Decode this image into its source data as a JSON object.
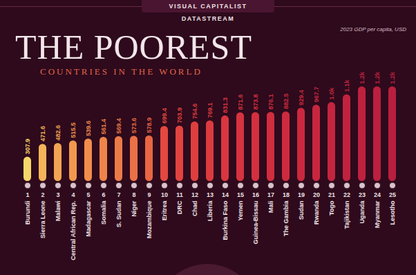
{
  "chart_data": {
    "type": "bar",
    "header": "VISUAL CAPITALIST DATASTREAM",
    "title": "THE POOREST",
    "subtitle": "COUNTRIES IN THE WORLD",
    "ylabel": "2023 GDP per capita, USD",
    "categories": [
      "Burundi",
      "Sierra Leone",
      "Malawi",
      "Central African Rep.",
      "Madagascar",
      "Somalia",
      "S. Sudan",
      "Niger",
      "Mozambique",
      "Eritrea",
      "DRC",
      "Chad",
      "Liberia",
      "Burkina Faso",
      "Yemen",
      "Guinea-Bissau",
      "Mali",
      "The Gambia",
      "Sudan",
      "Rwanda",
      "Togo",
      "Tajikistan",
      "Uganda",
      "Myanmar",
      "Lesotho"
    ],
    "ranks": [
      1,
      2,
      3,
      4,
      5,
      6,
      7,
      8,
      9,
      10,
      11,
      12,
      13,
      14,
      15,
      16,
      17,
      18,
      19,
      20,
      21,
      22,
      23,
      24,
      25
    ],
    "values": [
      307.9,
      471.6,
      482.6,
      515.5,
      539.6,
      561.4,
      569.4,
      573.6,
      578.9,
      699.4,
      703.9,
      754.6,
      769.1,
      831.3,
      871.6,
      873.8,
      876.1,
      882.5,
      929.4,
      967.7,
      1000,
      1100,
      1200,
      1200,
      1200
    ],
    "value_labels": [
      "307.9",
      "471.6",
      "482.6",
      "515.5",
      "539.6",
      "561.4",
      "569.4",
      "573.6",
      "578.9",
      "699.4",
      "703.9",
      "754.6",
      "769.1",
      "831.3",
      "871.6",
      "873.8",
      "876.1",
      "882.5",
      "929.4",
      "967.7",
      "1.0k",
      "1.1k",
      "1.2k",
      "1.2k",
      "1.2k"
    ],
    "colors": [
      "#f6d66b",
      "#f5b45a",
      "#f3a452",
      "#f2984e",
      "#f08d4c",
      "#ee844a",
      "#ec7a48",
      "#ea7046",
      "#e86644",
      "#e4483f",
      "#e2433f",
      "#df3e3f",
      "#dc3a3f",
      "#d9363f",
      "#d6333f",
      "#d3303f",
      "#d02d3f",
      "#cd2a3f",
      "#ca283f",
      "#c7263f",
      "#c4243f",
      "#c1223f",
      "#be213f",
      "#bb203f",
      "#b81f3f"
    ],
    "ylim": [
      0,
      1200
    ],
    "grid": false,
    "data_labels": true,
    "tick_labels": false
  }
}
